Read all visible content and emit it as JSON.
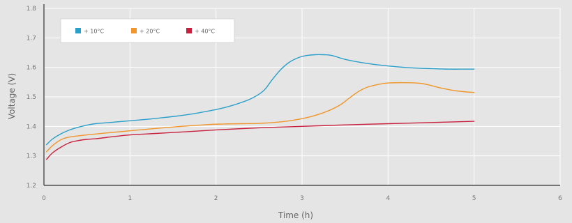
{
  "chart_data": {
    "type": "line",
    "title": "",
    "xlabel": "Time (h)",
    "ylabel": "Voltage (V)",
    "xlim": [
      0,
      6
    ],
    "ylim": [
      1.2,
      1.8
    ],
    "xticks": [
      0,
      1,
      2,
      3,
      4,
      5,
      6
    ],
    "yticks": [
      1.2,
      1.3,
      1.4,
      1.5,
      1.6,
      1.7,
      1.8
    ],
    "xtick_labels": [
      "0",
      "1",
      "2",
      "3",
      "4",
      "5",
      "6"
    ],
    "ytick_labels": [
      "1.2",
      "1.3",
      "1.4",
      "1.5",
      "1.6",
      "1.7",
      "1.8"
    ],
    "grid": true,
    "legend_position": "top-left",
    "series": [
      {
        "name": "+ 10°C",
        "color": "#2a9fc9",
        "x": [
          0.03,
          0.1,
          0.2,
          0.3,
          0.4,
          0.5,
          0.6,
          0.8,
          1.0,
          1.2,
          1.4,
          1.6,
          1.8,
          2.0,
          2.2,
          2.4,
          2.55,
          2.65,
          2.75,
          2.85,
          2.95,
          3.05,
          3.15,
          3.25,
          3.35,
          3.5,
          3.7,
          3.9,
          4.1,
          4.3,
          4.5,
          4.7,
          4.9,
          5.0
        ],
        "y": [
          1.338,
          1.357,
          1.375,
          1.388,
          1.397,
          1.404,
          1.409,
          1.414,
          1.419,
          1.424,
          1.43,
          1.437,
          1.446,
          1.457,
          1.472,
          1.493,
          1.52,
          1.557,
          1.592,
          1.617,
          1.632,
          1.64,
          1.643,
          1.643,
          1.64,
          1.627,
          1.616,
          1.608,
          1.602,
          1.598,
          1.596,
          1.594,
          1.594,
          1.594
        ]
      },
      {
        "name": "+ 20°C",
        "color": "#f0962a",
        "x": [
          0.03,
          0.1,
          0.2,
          0.3,
          0.5,
          0.7,
          1.0,
          1.3,
          1.6,
          1.9,
          2.1,
          2.3,
          2.5,
          2.7,
          2.9,
          3.1,
          3.3,
          3.45,
          3.55,
          3.65,
          3.75,
          3.9,
          4.0,
          4.2,
          4.4,
          4.6,
          4.8,
          5.0
        ],
        "y": [
          1.314,
          1.335,
          1.355,
          1.364,
          1.371,
          1.377,
          1.385,
          1.393,
          1.4,
          1.406,
          1.408,
          1.409,
          1.41,
          1.414,
          1.421,
          1.433,
          1.452,
          1.474,
          1.496,
          1.517,
          1.532,
          1.543,
          1.547,
          1.548,
          1.545,
          1.531,
          1.52,
          1.515
        ]
      },
      {
        "name": "+ 40°C",
        "color": "#c8213d",
        "x": [
          0.03,
          0.1,
          0.2,
          0.3,
          0.4,
          0.5,
          0.6,
          0.8,
          1.0,
          1.3,
          1.6,
          2.0,
          2.5,
          3.0,
          3.5,
          4.0,
          4.5,
          5.0
        ],
        "y": [
          1.288,
          1.31,
          1.33,
          1.345,
          1.352,
          1.356,
          1.358,
          1.365,
          1.371,
          1.376,
          1.381,
          1.388,
          1.395,
          1.4,
          1.405,
          1.409,
          1.413,
          1.417
        ]
      }
    ]
  }
}
